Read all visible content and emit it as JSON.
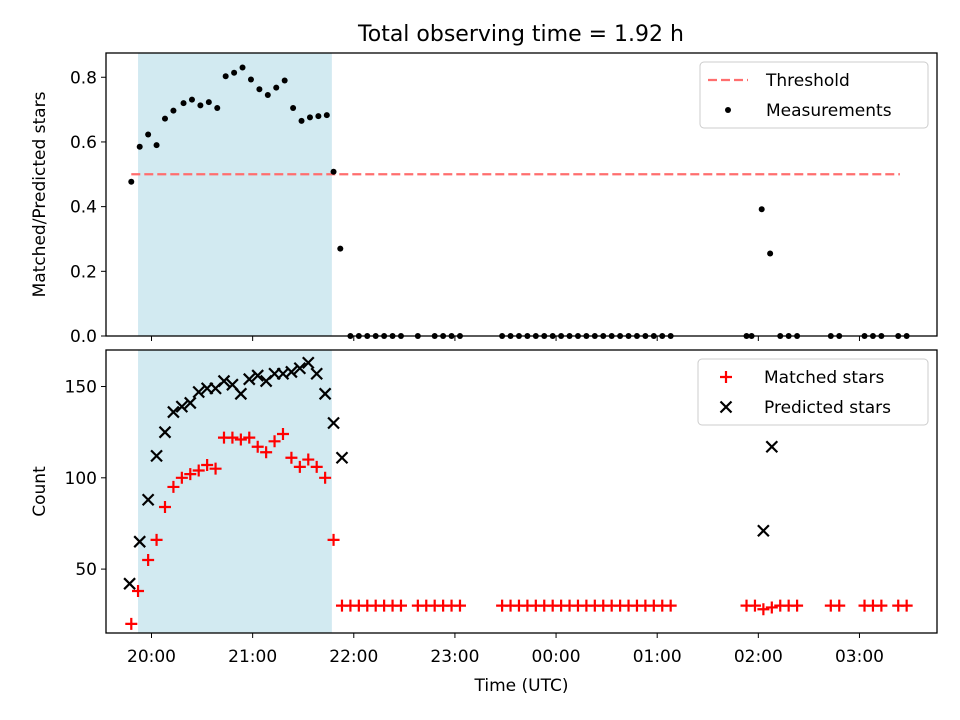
{
  "title": "Total observing time = 1.92 h",
  "chart_data": [
    {
      "type": "scatter",
      "panel": "top",
      "ylabel": "Matched/Predicted stars",
      "ylim": [
        0,
        0.875
      ],
      "yticks": [
        0.0,
        0.2,
        0.4,
        0.6,
        0.8
      ],
      "ytick_labels": [
        "0.0",
        "0.2",
        "0.4",
        "0.6",
        "0.8"
      ],
      "xlim": [
        "19:33",
        "03:46"
      ],
      "highlight_span": {
        "from": "19:52",
        "to": "21:47",
        "color": "#add8e6"
      },
      "threshold": {
        "name": "Threshold",
        "y": 0.5,
        "color": "#ff6e6e",
        "from": "19:48",
        "to": "03:24"
      },
      "legend": {
        "position": "top-right",
        "entries": [
          "Threshold",
          "Measurements"
        ]
      },
      "series": [
        {
          "name": "Measurements",
          "color": "#000000",
          "marker": "dot",
          "points": [
            [
              "19:48",
              0.477
            ],
            [
              "19:53",
              0.585
            ],
            [
              "19:58",
              0.623
            ],
            [
              "20:03",
              0.59
            ],
            [
              "20:08",
              0.672
            ],
            [
              "20:13",
              0.697
            ],
            [
              "20:19",
              0.72
            ],
            [
              "20:24",
              0.731
            ],
            [
              "20:29",
              0.713
            ],
            [
              "20:34",
              0.723
            ],
            [
              "20:39",
              0.705
            ],
            [
              "20:44",
              0.803
            ],
            [
              "20:49",
              0.814
            ],
            [
              "20:54",
              0.83
            ],
            [
              "20:59",
              0.793
            ],
            [
              "21:04",
              0.763
            ],
            [
              "21:09",
              0.745
            ],
            [
              "21:14",
              0.768
            ],
            [
              "21:19",
              0.79
            ],
            [
              "21:24",
              0.705
            ],
            [
              "21:29",
              0.665
            ],
            [
              "21:34",
              0.676
            ],
            [
              "21:39",
              0.68
            ],
            [
              "21:44",
              0.683
            ],
            [
              "21:48",
              0.508
            ],
            [
              "21:52",
              0.27
            ],
            [
              "21:58",
              0
            ],
            [
              "22:03",
              0
            ],
            [
              "22:08",
              0
            ],
            [
              "22:13",
              0
            ],
            [
              "22:18",
              0
            ],
            [
              "22:23",
              0
            ],
            [
              "22:28",
              0
            ],
            [
              "22:38",
              0
            ],
            [
              "22:48",
              0
            ],
            [
              "22:53",
              0
            ],
            [
              "22:58",
              0
            ],
            [
              "23:03",
              0
            ],
            [
              "23:28",
              0
            ],
            [
              "23:33",
              0
            ],
            [
              "23:38",
              0
            ],
            [
              "23:43",
              0
            ],
            [
              "23:48",
              0
            ],
            [
              "23:53",
              0
            ],
            [
              "23:58",
              0
            ],
            [
              "00:03",
              0
            ],
            [
              "00:08",
              0
            ],
            [
              "00:13",
              0
            ],
            [
              "00:18",
              0
            ],
            [
              "00:23",
              0
            ],
            [
              "00:28",
              0
            ],
            [
              "00:33",
              0
            ],
            [
              "00:38",
              0
            ],
            [
              "00:43",
              0
            ],
            [
              "00:48",
              0
            ],
            [
              "00:53",
              0
            ],
            [
              "00:58",
              0
            ],
            [
              "01:03",
              0
            ],
            [
              "01:08",
              0
            ],
            [
              "01:53",
              0
            ],
            [
              "01:56",
              0
            ],
            [
              "02:02",
              0.392
            ],
            [
              "02:07",
              0.255
            ],
            [
              "02:13",
              0
            ],
            [
              "02:18",
              0
            ],
            [
              "02:23",
              0
            ],
            [
              "02:43",
              0
            ],
            [
              "02:48",
              0
            ],
            [
              "03:03",
              0
            ],
            [
              "03:08",
              0
            ],
            [
              "03:13",
              0
            ],
            [
              "03:23",
              0
            ],
            [
              "03:28",
              0
            ]
          ]
        }
      ]
    },
    {
      "type": "scatter",
      "panel": "bottom",
      "xlabel": "Time (UTC)",
      "ylabel": "Count",
      "ylim": [
        15,
        170
      ],
      "yticks": [
        50,
        100,
        150
      ],
      "ytick_labels": [
        "50",
        "100",
        "150"
      ],
      "xlim": [
        "19:33",
        "03:46"
      ],
      "xticks": [
        "20:00",
        "21:00",
        "22:00",
        "23:00",
        "00:00",
        "01:00",
        "02:00",
        "03:00"
      ],
      "xtick_labels": [
        "20:00",
        "21:00",
        "22:00",
        "23:00",
        "00:00",
        "01:00",
        "02:00",
        "03:00"
      ],
      "highlight_span": {
        "from": "19:52",
        "to": "21:47",
        "color": "#add8e6"
      },
      "legend": {
        "position": "top-right",
        "entries": [
          "Matched stars",
          "Predicted stars"
        ]
      },
      "series": [
        {
          "name": "Matched stars",
          "color": "#ff0000",
          "marker": "plus",
          "points": [
            [
              "19:48",
              20
            ],
            [
              "19:52",
              38
            ],
            [
              "19:58",
              55
            ],
            [
              "20:03",
              66
            ],
            [
              "20:08",
              84
            ],
            [
              "20:13",
              95
            ],
            [
              "20:18",
              100
            ],
            [
              "20:23",
              102
            ],
            [
              "20:28",
              104
            ],
            [
              "20:33",
              107
            ],
            [
              "20:38",
              105
            ],
            [
              "20:43",
              122
            ],
            [
              "20:48",
              122
            ],
            [
              "20:53",
              121
            ],
            [
              "20:58",
              122
            ],
            [
              "21:03",
              117
            ],
            [
              "21:08",
              114
            ],
            [
              "21:13",
              120
            ],
            [
              "21:18",
              124
            ],
            [
              "21:23",
              111
            ],
            [
              "21:28",
              106
            ],
            [
              "21:33",
              110
            ],
            [
              "21:38",
              106
            ],
            [
              "21:43",
              100
            ],
            [
              "21:48",
              66
            ],
            [
              "21:53",
              30
            ],
            [
              "21:58",
              30
            ],
            [
              "22:03",
              30
            ],
            [
              "22:08",
              30
            ],
            [
              "22:13",
              30
            ],
            [
              "22:18",
              30
            ],
            [
              "22:23",
              30
            ],
            [
              "22:28",
              30
            ],
            [
              "22:38",
              30
            ],
            [
              "22:43",
              30
            ],
            [
              "22:48",
              30
            ],
            [
              "22:53",
              30
            ],
            [
              "22:58",
              30
            ],
            [
              "23:03",
              30
            ],
            [
              "23:28",
              30
            ],
            [
              "23:33",
              30
            ],
            [
              "23:38",
              30
            ],
            [
              "23:43",
              30
            ],
            [
              "23:48",
              30
            ],
            [
              "23:53",
              30
            ],
            [
              "23:58",
              30
            ],
            [
              "00:03",
              30
            ],
            [
              "00:08",
              30
            ],
            [
              "00:13",
              30
            ],
            [
              "00:18",
              30
            ],
            [
              "00:23",
              30
            ],
            [
              "00:28",
              30
            ],
            [
              "00:33",
              30
            ],
            [
              "00:38",
              30
            ],
            [
              "00:43",
              30
            ],
            [
              "00:48",
              30
            ],
            [
              "00:53",
              30
            ],
            [
              "00:58",
              30
            ],
            [
              "01:03",
              30
            ],
            [
              "01:08",
              30
            ],
            [
              "01:53",
              30
            ],
            [
              "01:58",
              30
            ],
            [
              "02:03",
              28
            ],
            [
              "02:08",
              29
            ],
            [
              "02:13",
              30
            ],
            [
              "02:18",
              30
            ],
            [
              "02:23",
              30
            ],
            [
              "02:43",
              30
            ],
            [
              "02:48",
              30
            ],
            [
              "03:03",
              30
            ],
            [
              "03:08",
              30
            ],
            [
              "03:13",
              30
            ],
            [
              "03:23",
              30
            ],
            [
              "03:28",
              30
            ]
          ]
        },
        {
          "name": "Predicted stars",
          "color": "#000000",
          "marker": "x",
          "points": [
            [
              "19:47",
              42
            ],
            [
              "19:53",
              65
            ],
            [
              "19:58",
              88
            ],
            [
              "20:03",
              112
            ],
            [
              "20:08",
              125
            ],
            [
              "20:13",
              136
            ],
            [
              "20:18",
              139
            ],
            [
              "20:23",
              141
            ],
            [
              "20:28",
              147
            ],
            [
              "20:33",
              149
            ],
            [
              "20:38",
              149
            ],
            [
              "20:43",
              153
            ],
            [
              "20:48",
              151
            ],
            [
              "20:53",
              146
            ],
            [
              "20:58",
              154
            ],
            [
              "21:03",
              156
            ],
            [
              "21:08",
              153
            ],
            [
              "21:13",
              157
            ],
            [
              "21:18",
              157
            ],
            [
              "21:23",
              158
            ],
            [
              "21:28",
              160
            ],
            [
              "21:33",
              163
            ],
            [
              "21:38",
              157
            ],
            [
              "21:43",
              146
            ],
            [
              "21:48",
              130
            ],
            [
              "21:53",
              111
            ],
            [
              "02:03",
              71
            ],
            [
              "02:08",
              117
            ]
          ]
        }
      ]
    }
  ]
}
